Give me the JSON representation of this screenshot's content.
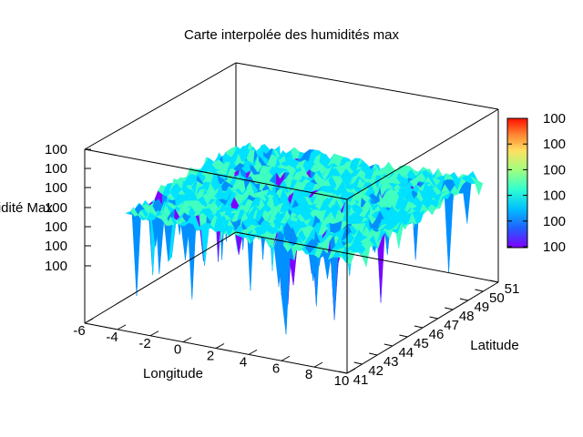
{
  "chart_data": {
    "type": "surface3d",
    "title": "Carte interpolée des humidités max",
    "xlabel": "Longitude",
    "ylabel": "Latitude",
    "zlabel": "Humidité Max",
    "x_ticks": [
      "-6",
      "-4",
      "-2",
      "0",
      "2",
      "4",
      "6",
      "8",
      "10"
    ],
    "y_ticks": [
      "41",
      "42",
      "43",
      "44",
      "45",
      "46",
      "47",
      "48",
      "49",
      "50",
      "51"
    ],
    "z_ticks": [
      "100",
      "100",
      "100",
      "100",
      "100",
      "100",
      "100"
    ],
    "colorbar_ticks": [
      "100",
      "100",
      "100",
      "100",
      "100",
      "100"
    ],
    "xlim": [
      -6,
      10
    ],
    "ylim": [
      41,
      51
    ],
    "surface": {
      "description_level": "approximately constant ~100 with small noisy spikes",
      "colormap": [
        "#7f00ff",
        "#0090ff",
        "#00e0ff",
        "#40ffc0",
        "#a0ff80",
        "#ffe060",
        "#ff9040",
        "#ff2000"
      ]
    }
  }
}
